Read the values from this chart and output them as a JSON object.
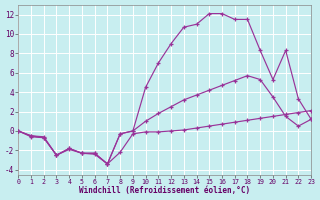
{
  "xlabel": "Windchill (Refroidissement éolien,°C)",
  "background_color": "#c8eef0",
  "grid_color": "#ffffff",
  "line_color": "#993399",
  "xlim": [
    0,
    23
  ],
  "ylim": [
    -4.5,
    13
  ],
  "xticks": [
    0,
    1,
    2,
    3,
    4,
    5,
    6,
    7,
    8,
    9,
    10,
    11,
    12,
    13,
    14,
    15,
    16,
    17,
    18,
    19,
    20,
    21,
    22,
    23
  ],
  "yticks": [
    -4,
    -2,
    0,
    2,
    4,
    6,
    8,
    10,
    12
  ],
  "line1_x": [
    0,
    1,
    2,
    3,
    4,
    5,
    6,
    7,
    8,
    9,
    10,
    11,
    12,
    13,
    14,
    15,
    16,
    17,
    18,
    19,
    20,
    21,
    22,
    23
  ],
  "line1_y": [
    0.0,
    -0.6,
    -0.7,
    -2.5,
    -1.8,
    -2.3,
    -2.3,
    -3.4,
    -2.2,
    -0.3,
    -0.1,
    -0.1,
    0.0,
    0.1,
    0.3,
    0.5,
    0.7,
    0.9,
    1.1,
    1.3,
    1.5,
    1.7,
    1.9,
    2.1
  ],
  "line2_x": [
    0,
    1,
    2,
    3,
    4,
    5,
    6,
    7,
    8,
    9,
    10,
    11,
    12,
    13,
    14,
    15,
    16,
    17,
    18,
    19,
    20,
    21,
    22,
    23
  ],
  "line2_y": [
    0.0,
    -0.5,
    -0.7,
    -2.5,
    -1.8,
    -2.3,
    -2.3,
    -3.4,
    -0.3,
    0.0,
    1.0,
    1.8,
    2.5,
    3.2,
    3.7,
    4.2,
    4.7,
    5.2,
    5.7,
    5.3,
    3.5,
    1.5,
    0.5,
    1.2
  ],
  "line3_x": [
    0,
    1,
    2,
    3,
    4,
    5,
    6,
    7,
    8,
    9,
    10,
    11,
    12,
    13,
    14,
    15,
    16,
    17,
    18,
    19,
    20,
    21,
    22,
    23
  ],
  "line3_y": [
    0.0,
    -0.5,
    -0.6,
    -2.5,
    -1.9,
    -2.3,
    -2.4,
    -3.4,
    -0.3,
    0.0,
    4.5,
    7.0,
    9.0,
    10.7,
    11.0,
    12.1,
    12.1,
    11.5,
    11.5,
    8.3,
    5.3,
    8.3,
    3.3,
    1.2
  ]
}
